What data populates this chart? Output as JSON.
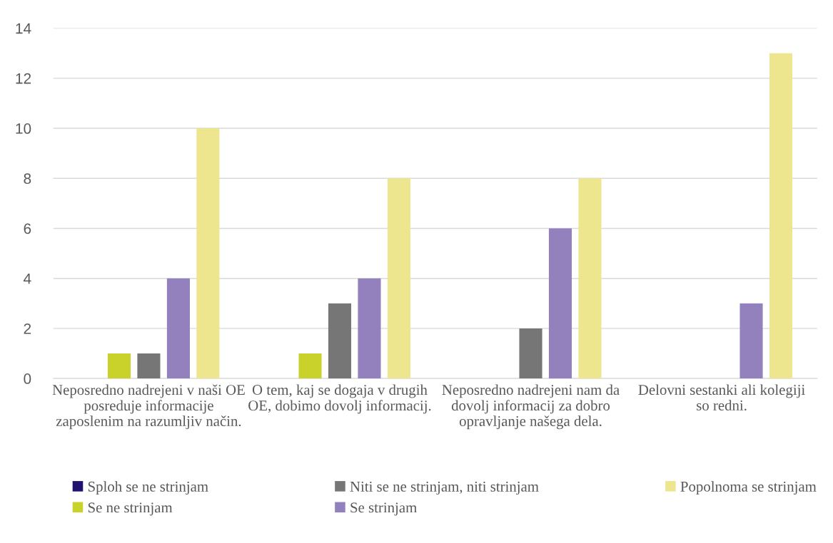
{
  "chart_data": {
    "type": "bar",
    "categories": [
      "Neposredno nadrejeni v naši OE posreduje informacije zaposlenim na razumljiv način.",
      "O tem, kaj se dogaja v drugih OE, dobimo dovolj informacij.",
      "Neposredno nadrejeni nam da dovolj informacij za dobro opravljanje našega dela.",
      "Delovni sestanki ali kolegiji so redni."
    ],
    "series": [
      {
        "name": "Sploh se ne strinjam",
        "color": "#20126e",
        "values": [
          0,
          0,
          0,
          0
        ]
      },
      {
        "name": "Se ne strinjam",
        "color": "#c9d22b",
        "values": [
          1,
          1,
          0,
          0
        ]
      },
      {
        "name": "Niti se ne strinjam, niti strinjam",
        "color": "#767676",
        "values": [
          1,
          3,
          2,
          0
        ]
      },
      {
        "name": "Se strinjam",
        "color": "#9381be",
        "values": [
          4,
          4,
          6,
          3
        ]
      },
      {
        "name": "Popolnoma se strinjam",
        "color": "#ede68f",
        "values": [
          10,
          8,
          8,
          13
        ]
      }
    ],
    "ylim": [
      0,
      14
    ],
    "yticks": [
      0,
      2,
      4,
      6,
      8,
      10,
      12,
      14
    ],
    "grid": "y",
    "legend": "bottom"
  }
}
